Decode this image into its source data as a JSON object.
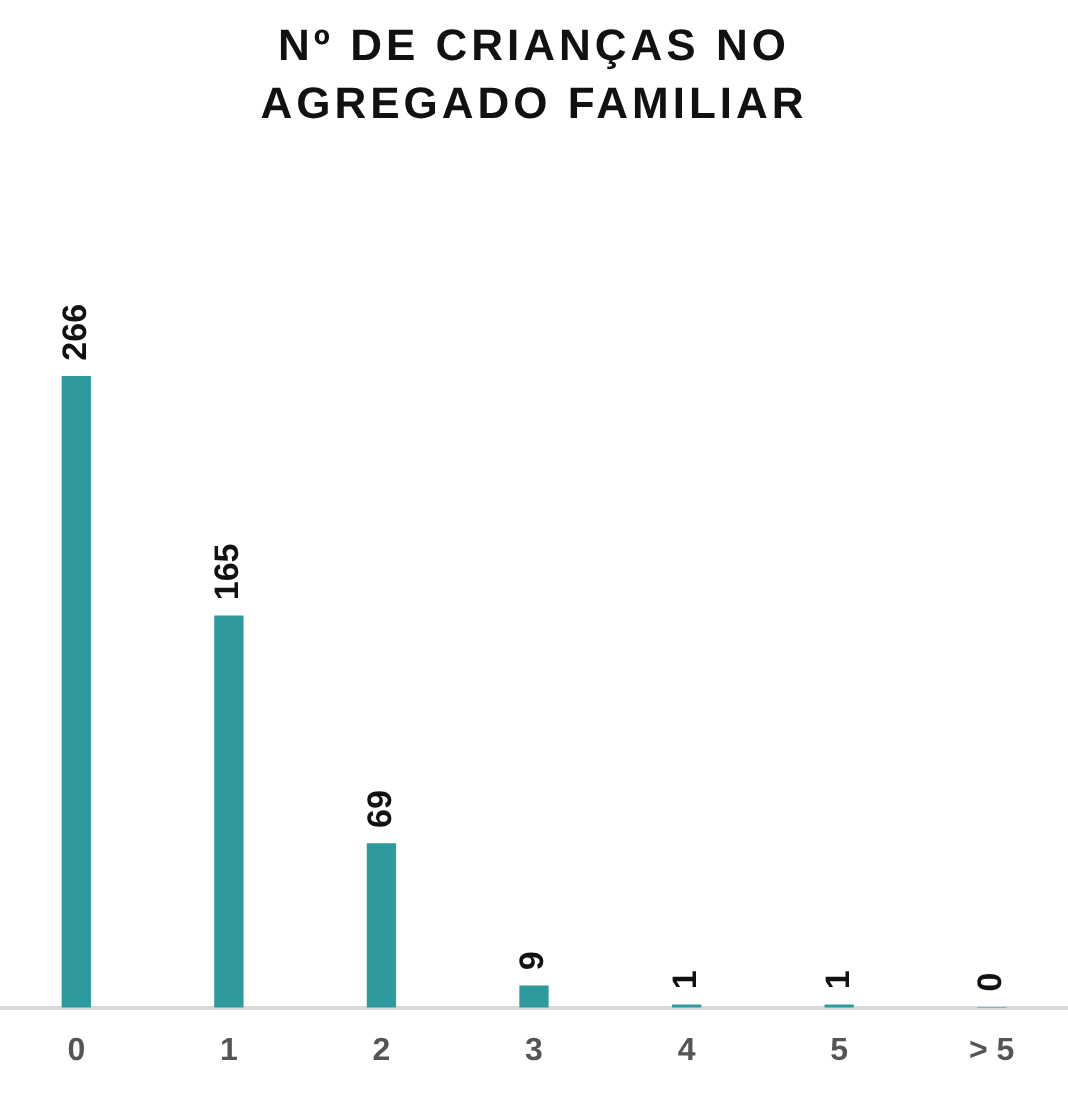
{
  "chart_data": {
    "type": "bar",
    "title": "Nº DE CRIANÇAS NO AGREGADO FAMILIAR",
    "categories": [
      "0",
      "1",
      "2",
      "3",
      "4",
      "5",
      "> 5"
    ],
    "values": [
      266,
      165,
      69,
      9,
      1,
      1,
      0
    ],
    "color": "#2e9a9e",
    "data_labels": true,
    "grid": false,
    "legend": false
  }
}
